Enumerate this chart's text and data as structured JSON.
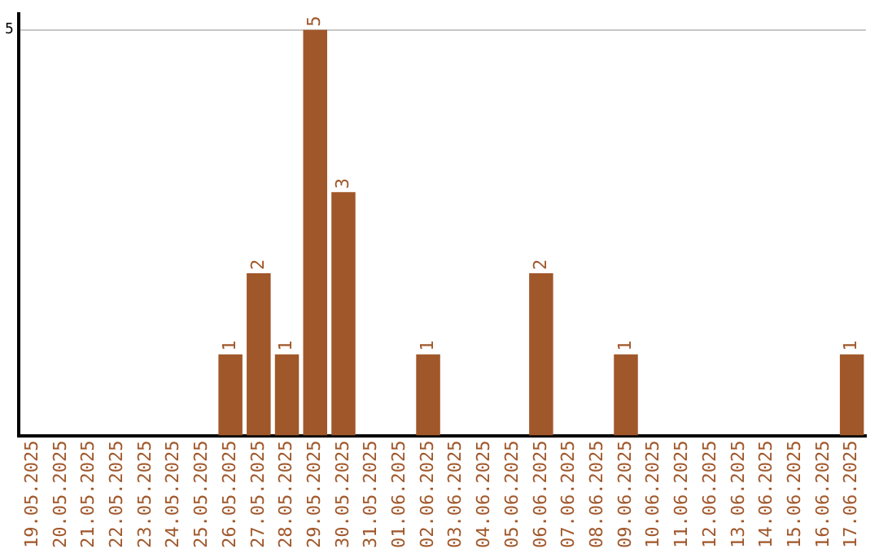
{
  "chart_data": {
    "type": "bar",
    "categories": [
      "19.05.2025",
      "20.05.2025",
      "21.05.2025",
      "22.05.2025",
      "23.05.2025",
      "24.05.2025",
      "25.05.2025",
      "26.05.2025",
      "27.05.2025",
      "28.05.2025",
      "29.05.2025",
      "30.05.2025",
      "31.05.2025",
      "01.06.2025",
      "02.06.2025",
      "03.06.2025",
      "04.06.2025",
      "05.06.2025",
      "06.06.2025",
      "07.06.2025",
      "08.06.2025",
      "09.06.2025",
      "10.06.2025",
      "11.06.2025",
      "12.06.2025",
      "13.06.2025",
      "14.06.2025",
      "15.06.2025",
      "16.06.2025",
      "17.06.2025"
    ],
    "values": [
      0,
      0,
      0,
      0,
      0,
      0,
      0,
      1,
      2,
      1,
      5,
      3,
      0,
      0,
      1,
      0,
      0,
      0,
      2,
      0,
      0,
      1,
      0,
      0,
      0,
      0,
      0,
      0,
      0,
      1
    ],
    "value_labels": [
      null,
      null,
      null,
      null,
      null,
      null,
      null,
      "1",
      "2",
      "1",
      "5",
      "3",
      null,
      null,
      "1",
      null,
      null,
      null,
      "2",
      null,
      null,
      "1",
      null,
      null,
      null,
      null,
      null,
      null,
      null,
      "1"
    ],
    "color": "#a0572a",
    "ylim": [
      0,
      5.2
    ],
    "yticks": [
      5
    ],
    "grid": "y",
    "legend": false
  }
}
